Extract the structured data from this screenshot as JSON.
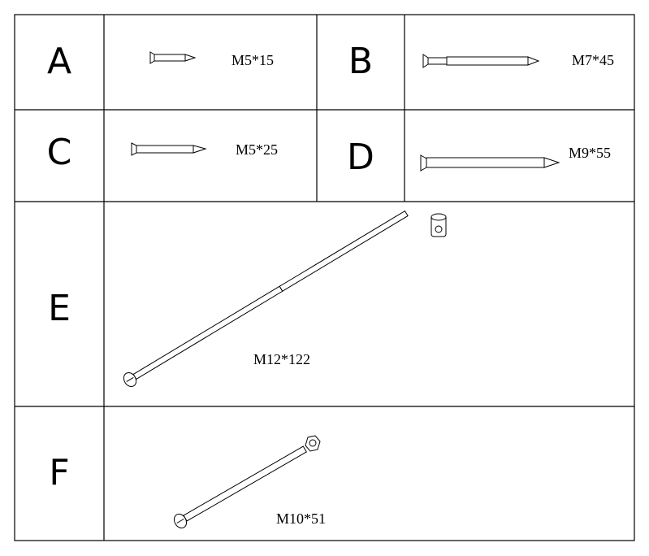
{
  "parts": [
    {
      "letter": "A",
      "size": "M5*15"
    },
    {
      "letter": "B",
      "size": "M7*45"
    },
    {
      "letter": "C",
      "size": "M5*25"
    },
    {
      "letter": "D",
      "size": "M9*55"
    },
    {
      "letter": "E",
      "size": "M12*122"
    },
    {
      "letter": "F",
      "size": "M10*51"
    }
  ]
}
